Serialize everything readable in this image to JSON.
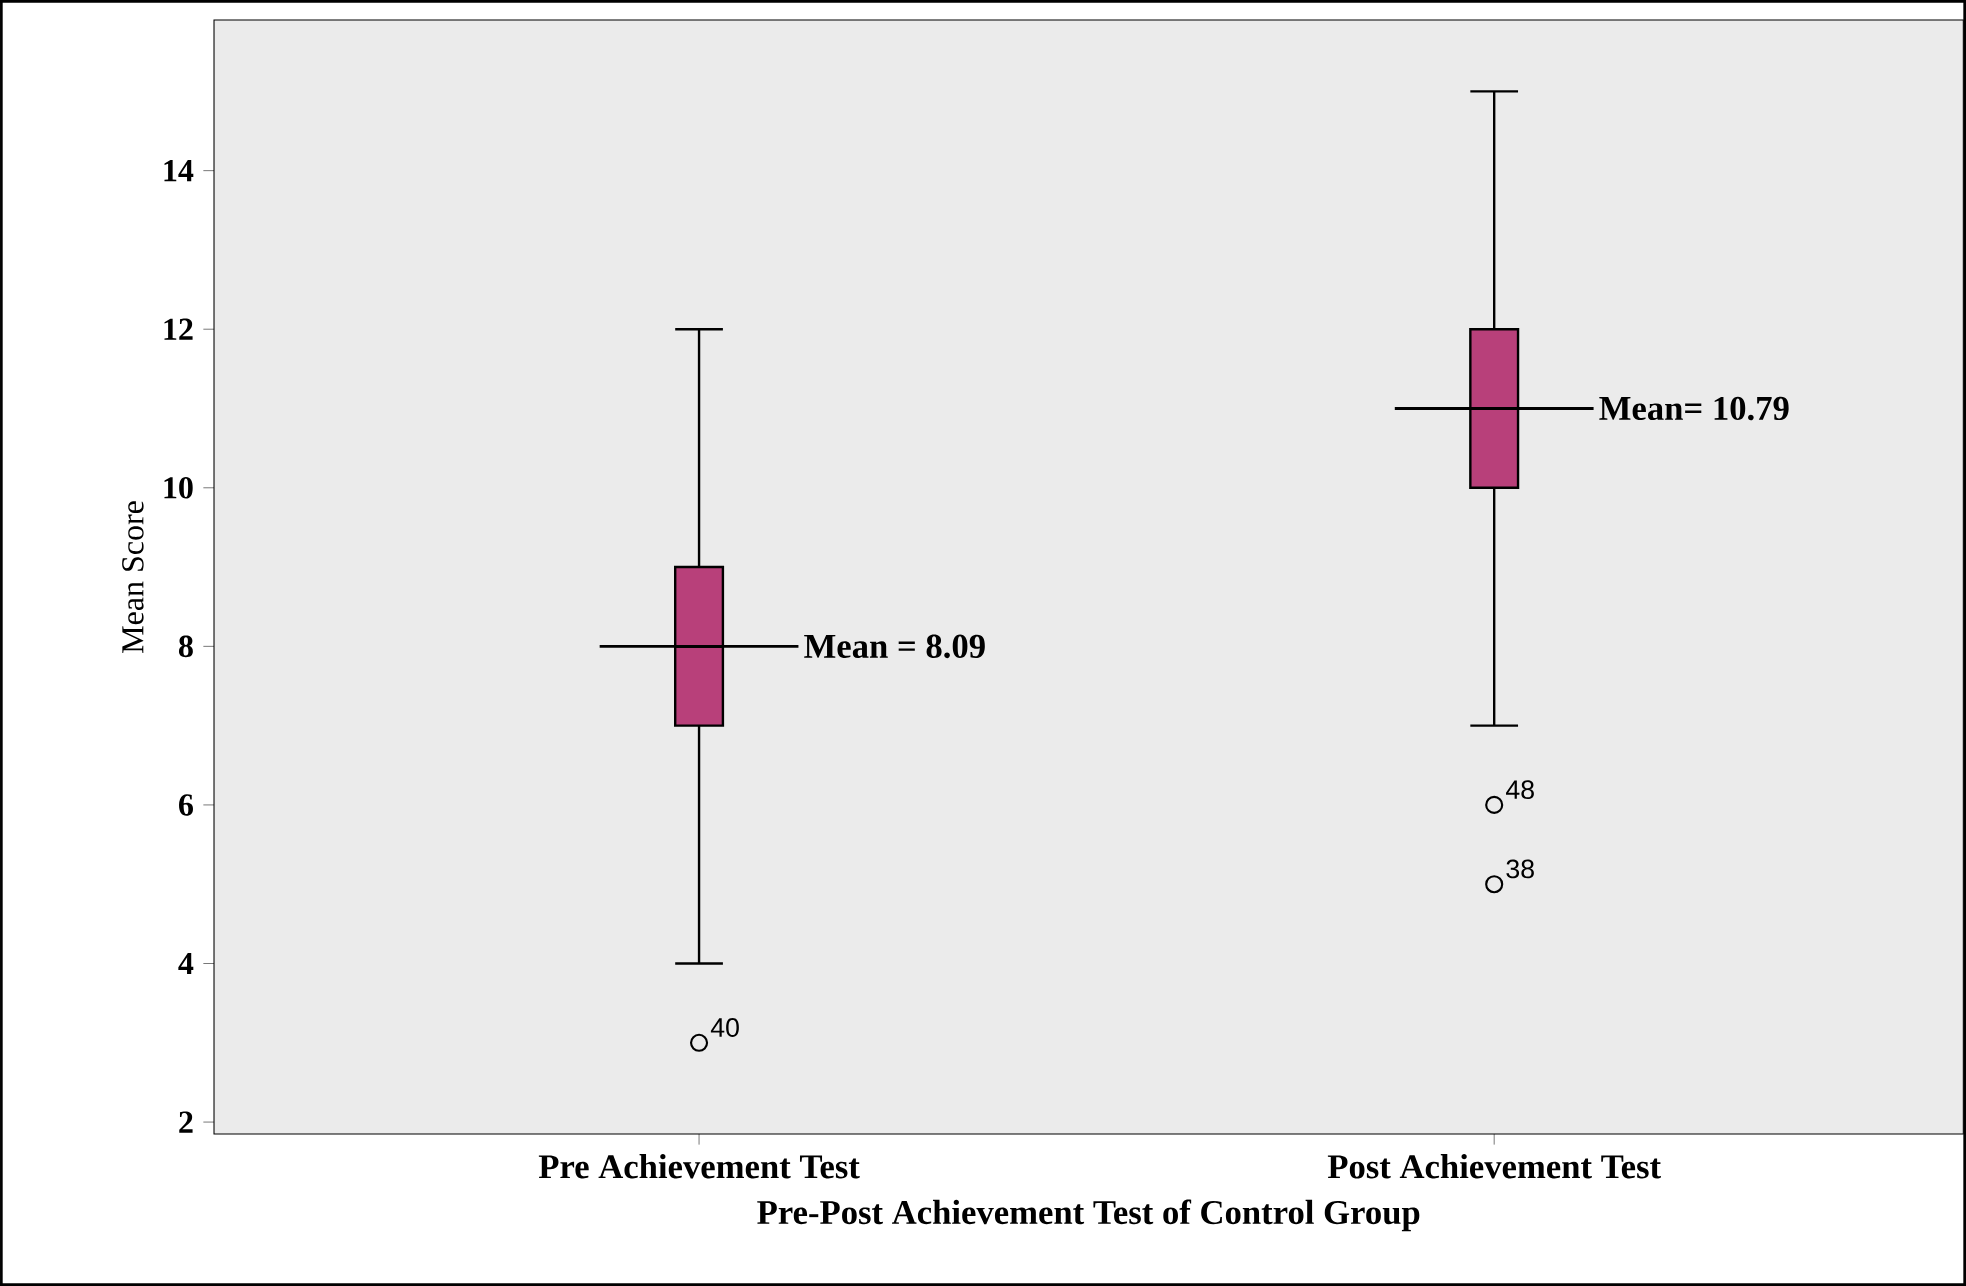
{
  "chart_data": {
    "type": "box",
    "xlabel": "Pre-Post Achievement Test of Control Group",
    "ylabel": "Mean Score",
    "categories": [
      "Pre Achievement Test",
      "Post Achievement Test"
    ],
    "boxes": [
      {
        "low": 4,
        "q1": 7,
        "median": 8,
        "q3": 9,
        "high": 12,
        "outliers": [
          3
        ]
      },
      {
        "low": 7,
        "q1": 10,
        "median": 11,
        "q3": 12,
        "high": 15,
        "outliers": [
          6,
          5
        ]
      }
    ],
    "color": "#b8407a",
    "ylim": [
      1.85,
      15.9
    ],
    "yticks": [
      2,
      4,
      6,
      8,
      10,
      12,
      14
    ],
    "annotations": [
      "Mean = 8.09",
      "Mean= 10.79",
      "40",
      "48",
      "38"
    ],
    "grid": false
  }
}
